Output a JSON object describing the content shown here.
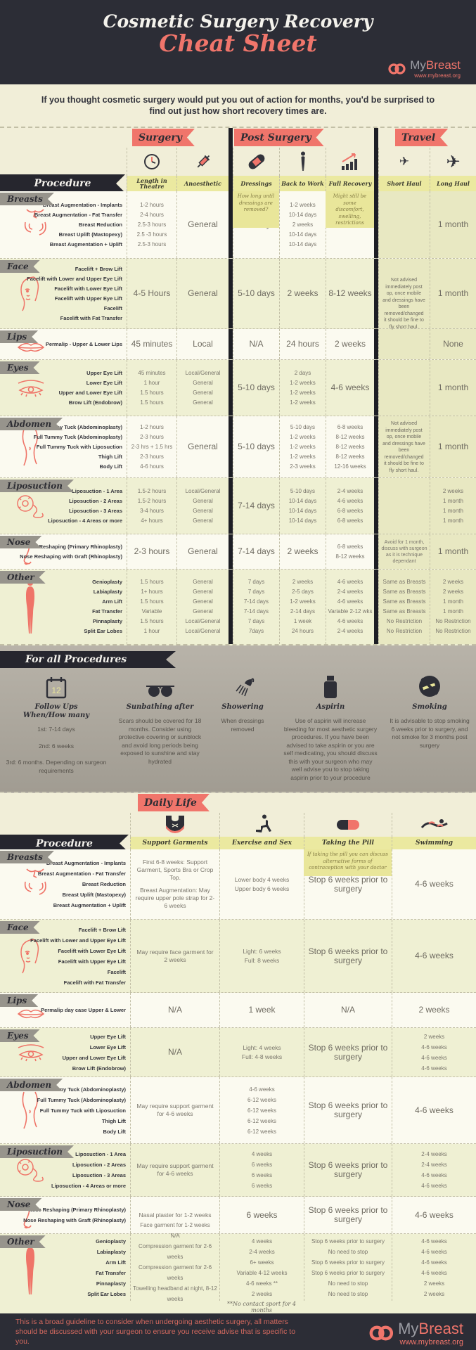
{
  "header": {
    "title_line1": "Cosmetic Surgery Recovery",
    "title_line2": "Cheat Sheet",
    "brand_my": "My",
    "brand_rest": "Breast",
    "url": "www.mybreast.org"
  },
  "intro": {
    "text": "If you thought cosmetic surgery would put you out of action for months, you'd be surprised to find out just how short recovery times are."
  },
  "recovery": {
    "banners": {
      "surgery": "Surgery",
      "post": "Post Surgery",
      "travel": "Travel"
    },
    "procedure_label": "Procedure",
    "columns": {
      "length": "Length in Theatre",
      "anaesthetic": "Anaesthetic",
      "dressings": "Dressings",
      "dressings_note": "How long until dressings are removed?",
      "back": "Back to Work",
      "recovery": "Full Recovery",
      "recovery_note": "Might still be some discomfort, swelling, restrictions",
      "short": "Short Haul",
      "long": "Long Haul"
    },
    "short_haul_note_upper": "Not advised immediately post op, once mobile and dressings have been removed/changed it should be fine to fly short haul.",
    "short_haul_note_lower": "Not advised immediately post op, once mobile and dressings have been removed/changed it should be fine to fly short haul.",
    "sections": [
      {
        "name": "Breasts",
        "procedures": [
          "Breast Augmentation - Implants",
          "Breast Augmentation - Fat Transfer",
          "Breast Reduction",
          "Breast Uplift (Mastopexy)",
          "Breast Augmentation + Uplift"
        ],
        "length_list": [
          "1-2 hours",
          "2-4 hours",
          "2.5-3 hours",
          "2.5 -3 hours",
          "2.5-3 hours"
        ],
        "anaesthetic": "General",
        "dressings": "7-14 days",
        "back_list": [
          "1-2 weeks",
          "10-14 days",
          "2 weeks",
          "10-14 days",
          "10-14 days"
        ],
        "recovery": "6-8 weeks",
        "long": "1 month"
      },
      {
        "name": "Face",
        "procedures": [
          "Facelift + Brow Lift",
          "Facelift with Lower and Upper Eye Lift",
          "Facelift with Lower Eye Lift",
          "Facelift with Upper Eye Lift",
          "Facelift",
          "Facelift with Fat Transfer"
        ],
        "length": "4-5 Hours",
        "anaesthetic": "General",
        "dressings": "5-10 days",
        "back": "2 weeks",
        "recovery": "8-12 weeks",
        "long": "1 month"
      },
      {
        "name": "Lips",
        "procedures": [
          "Permalip - Upper & Lower Lips"
        ],
        "length": "45 minutes",
        "anaesthetic": "Local",
        "dressings": "N/A",
        "back": "24 hours",
        "recovery": "2 weeks",
        "long": "None"
      },
      {
        "name": "Eyes",
        "procedures": [
          "Upper Eye Lift",
          "Lower Eye Lift",
          "Upper and Lower Eye Lift",
          "Brow Lift (Endobrow)"
        ],
        "length_list": [
          "45 minutes",
          "1 hour",
          "1.5 hours",
          "1.5 hours"
        ],
        "anaesthetic_list": [
          "Local/General",
          "General",
          "General",
          "General"
        ],
        "dressings": "5-10 days",
        "back_list": [
          "2 days",
          "1-2 weeks",
          "1-2 weeks",
          "1-2 weeks"
        ],
        "recovery": "4-6 weeks",
        "long": "1 month"
      },
      {
        "name": "Abdomen",
        "procedures": [
          "Mini Tummy Tuck (Abdominoplasty)",
          "Full Tummy Tuck (Abdominoplasty)",
          "Full Tummy Tuck with Liposuction",
          "Thigh Lift",
          "Body Lift"
        ],
        "length_list": [
          "1-2 hours",
          "2-3 hours",
          "2-3 hrs + 1.5 hrs",
          "2-3 hours",
          "4-6 hours"
        ],
        "anaesthetic": "General",
        "dressings": "5-10 days",
        "back_list": [
          "5-10 days",
          "1-2 weeks",
          "1-2 weeks",
          "1-2 weeks",
          "2-3 weeks"
        ],
        "recovery_list": [
          "6-8 weeks",
          "8-12 weeks",
          "8-12 weeks",
          "8-12 weeks",
          "12-16 weeks"
        ],
        "long": "1 month"
      },
      {
        "name": "Liposuction",
        "procedures": [
          "Liposuction - 1 Area",
          "Liposuction - 2 Areas",
          "Liposuction - 3 Areas",
          "Liposuction - 4 Areas or more"
        ],
        "length_list": [
          "1.5-2 hours",
          "1.5-2 hours",
          "3-4 hours",
          "4+ hours"
        ],
        "anaesthetic_list": [
          "Local/General",
          "General",
          "General",
          "General"
        ],
        "dressings": "7-14 days",
        "back_list": [
          "5-10 days",
          "10-14 days",
          "10-14 days",
          "10-14 days"
        ],
        "recovery_list": [
          "2-4 weeks",
          "4-6 weeks",
          "6-8 weeks",
          "6-8 weeks"
        ],
        "long_list": [
          "2 weeks",
          "1 month",
          "1 month",
          "1 month"
        ]
      },
      {
        "name": "Nose",
        "procedures": [
          "Nose Reshaping (Primary Rhinoplasty)",
          "Nose Reshaping with Graft (Rhinoplasty)"
        ],
        "length": "2-3 hours",
        "anaesthetic": "General",
        "dressings": "7-14 days",
        "back": "2 weeks",
        "recovery_list": [
          "6-8 weeks",
          "8-12 weeks"
        ],
        "short": "Avoid for 1 month, discuss with surgeon as it is technique dependant",
        "long": "1 month"
      },
      {
        "name": "Other",
        "procedures": [
          "Genioplasty",
          "Labiaplasty",
          "Arm Lift",
          "Fat Transfer",
          "Pinnaplasty",
          "Split Ear Lobes"
        ],
        "length_list": [
          "1.5 hours",
          "1+ hours",
          "1.5 hours",
          "Variable",
          "1.5 hours",
          "1 hour"
        ],
        "anaesthetic_list": [
          "General",
          "General",
          "General",
          "General",
          "Local/General",
          "Local/General"
        ],
        "dressings_list": [
          "7 days",
          "7 days",
          "7-14 days",
          "7-14 days",
          "7 days",
          "7days"
        ],
        "back_list": [
          "2 weeks",
          "2-5 days",
          "1-2 weeks",
          "2-14 days",
          "1 week",
          "24 hours"
        ],
        "recovery_list": [
          "4-6 weeks",
          "2-4 weeks",
          "4-6 weeks",
          "Variable 2-12 wks",
          "4-6 weeks",
          "2-4 weeks"
        ],
        "short_list": [
          "Same as Breasts",
          "Same as Breasts",
          "Same as Breasts",
          "Same as Breasts",
          "No Restriction",
          "No Restriction"
        ],
        "long_list": [
          "2 weeks",
          "2 weeks",
          "1 month",
          "1 month",
          "No Restriction",
          "No Restriction"
        ]
      }
    ]
  },
  "for_all": {
    "title": "For all Procedures",
    "items": [
      {
        "title": "Follow Ups When/How many",
        "lines": [
          "1st: 7-14 days",
          "2nd: 6 weeks",
          "3rd: 6 months. Depending on surgeon requirements"
        ]
      },
      {
        "title": "Sunbathing after",
        "text": "Scars should be covered for 18 months. Consider using protective covering or sunblock and avoid long periods being exposed to sunshine and stay hydrated"
      },
      {
        "title": "Showering",
        "text": "When dressings removed"
      },
      {
        "title": "Aspirin",
        "text": "Use of aspirin will increase bleeding for most aesthetic surgery procedures. If you have been advised to take aspirin or you are self medicating, you should discuss this with your surgeon who may well advise you to stop taking aspirin prior to your procedure"
      },
      {
        "title": "Smoking",
        "text": "It is advisable to stop smoking 6 weeks prior to surgery, and not smoke for 3 months post surgery"
      }
    ]
  },
  "daily": {
    "banner": "Daily Life",
    "procedure_label": "Procedure",
    "columns": {
      "support": "Support Garments",
      "exercise": "Exercise and Sex",
      "pill": "Taking the Pill",
      "pill_note": "If taking the pill you can discuss alternative forms of contraception with your doctor",
      "swim": "Swimming"
    },
    "footnote": "**No contact sport for 4 months",
    "sections": [
      {
        "name": "Breasts",
        "procedures": [
          "Breast Augmentation - Implants",
          "Breast Augmentation - Fat Transfer",
          "Breast Reduction",
          "Breast Uplift (Mastopexy)",
          "Breast Augmentation + Uplift"
        ],
        "support_list": [
          "First 6-8 weeks: Support Garment, Sports Bra or Crop Top.",
          "Breast Augmentation: May require upper pole strap for 2-6 weeks"
        ],
        "exercise_list": [
          "Lower body 4 weeks",
          "Upper body 6 weeks"
        ],
        "pill": "Stop 6 weeks prior to surgery",
        "swim": "4-6 weeks"
      },
      {
        "name": "Face",
        "procedures": [
          "Facelift + Brow Lift",
          "Facelift with Lower and Upper Eye Lift",
          "Facelift with Lower Eye Lift",
          "Facelift with Upper Eye Lift",
          "Facelift",
          "Facelift with Fat Transfer"
        ],
        "support": "May require face garment for 2 weeks",
        "exercise_list": [
          "Light: 6 weeks",
          "Full: 8 weeks"
        ],
        "pill": "Stop 6 weeks prior to surgery",
        "swim": "4-6 weeks"
      },
      {
        "name": "Lips",
        "procedures": [
          "Permalip day case Upper & Lower"
        ],
        "support": "N/A",
        "exercise": "1 week",
        "pill": "N/A",
        "swim": "2 weeks"
      },
      {
        "name": "Eyes",
        "procedures": [
          "Upper Eye Lift",
          "Lower Eye Lift",
          "Upper and Lower Eye Lift",
          "Brow Lift (Endobrow)"
        ],
        "support": "N/A",
        "exercise_list": [
          "Light: 4 weeks",
          "Full: 4-8 weeks"
        ],
        "pill": "Stop 6 weeks prior to surgery",
        "swim_list": [
          "2 weeks",
          "4-6 weeks",
          "4-6 weeks",
          "4-6 weeks"
        ]
      },
      {
        "name": "Abdomen",
        "procedures": [
          "Mini Tummy Tuck (Abdominoplasty)",
          "Full Tummy Tuck (Abdominoplasty)",
          "Full Tummy Tuck with Liposuction",
          "Thigh Lift",
          "Body Lift"
        ],
        "support": "May require support garment for 4-6 weeks",
        "exercise_list": [
          "4-6 weeks",
          "6-12 weeks",
          "6-12 weeks",
          "6-12 weeks",
          "6-12 weeks"
        ],
        "pill": "Stop 6 weeks prior to surgery",
        "swim": "4-6 weeks"
      },
      {
        "name": "Liposuction",
        "procedures": [
          "Liposuction - 1 Area",
          "Liposuction - 2 Areas",
          "Liposuction - 3 Areas",
          "Liposuction - 4 Areas or more"
        ],
        "support": "May require support garment for 4-6 weeks",
        "exercise_list": [
          "4 weeks",
          "6 weeks",
          "6 weeks",
          "6 weeks"
        ],
        "pill": "Stop 6 weeks prior to surgery",
        "swim_list": [
          "2-4 weeks",
          "2-4 weeks",
          "4-6 weeks",
          "4-6 weeks"
        ]
      },
      {
        "name": "Nose",
        "procedures": [
          "Nose Reshaping (Primary Rhinoplasty)",
          "Nose Reshaping with Graft (Rhinoplasty)"
        ],
        "support": "Nasal plaster for 1-2 weeks",
        "exercise": "6 weeks",
        "pill": "Stop 6 weeks prior to surgery",
        "swim": "4-6 weeks"
      },
      {
        "name": "Other",
        "procedures": [
          "Genioplasty",
          "Labiaplasty",
          "Arm Lift",
          "Fat Transfer",
          "Pinnaplasty",
          "Split Ear Lobes"
        ],
        "support_list": [
          "Face garment for 1-2 weeks",
          "N/A",
          "Compression garment for 2-6 weeks",
          "Compression garment for 2-6 weeks",
          "Towelling headband at night, 8-12 weeks",
          "N/A"
        ],
        "exercise_list": [
          "4 weeks",
          "2-4 weeks",
          "6+ weeks",
          "Variable 4-12 weeks",
          "4-6 weeks **",
          "2 weeks"
        ],
        "pill_list": [
          "Stop 6 weeks prior to surgery",
          "No need to stop",
          "Stop 6 weeks prior to surgery",
          "Stop 6 weeks prior to surgery",
          "No need to stop",
          "No need to stop"
        ],
        "swim_list": [
          "4-6 weeks",
          "4-6 weeks",
          "4-6 weeks",
          "4-6 weeks",
          "2 weeks",
          "2 weeks"
        ]
      }
    ]
  },
  "footer": {
    "text": "This is a broad guideline to consider when undergoing aesthetic surgery, all matters should be discussed with your surgeon to ensure you receive advise that is specific to you.",
    "brand_my": "My",
    "brand_rest": "Breast",
    "url": "www.mybreast.org"
  }
}
